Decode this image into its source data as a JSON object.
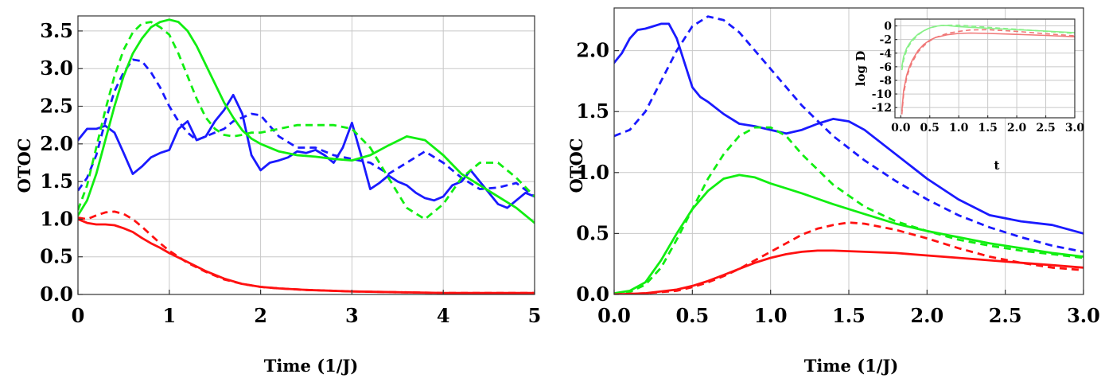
{
  "colors": {
    "blue": "#1a1aff",
    "green": "#11ee11",
    "red": "#ff1111",
    "inset_green": "#88f088",
    "inset_red": "#f07878"
  },
  "chart_data": [
    {
      "type": "line",
      "title": "",
      "xlabel": "Time (1/J)",
      "ylabel": "OTOC",
      "xlim": [
        0,
        5
      ],
      "ylim": [
        0,
        3.7
      ],
      "xticks": [
        "0",
        "1",
        "2",
        "3",
        "4",
        "5"
      ],
      "yticks": [
        "0.0",
        "0.5",
        "1.0",
        "1.5",
        "2.0",
        "2.5",
        "3.0",
        "3.5"
      ],
      "xtick_values": [
        0,
        1,
        2,
        3,
        4,
        5
      ],
      "ytick_values": [
        0,
        0.5,
        1.0,
        1.5,
        2.0,
        2.5,
        3.0,
        3.5
      ],
      "grid": true,
      "series": [
        {
          "color": "blue",
          "style": "solid",
          "x": [
            0,
            0.1,
            0.2,
            0.3,
            0.4,
            0.5,
            0.6,
            0.7,
            0.8,
            0.9,
            1.0,
            1.1,
            1.2,
            1.3,
            1.4,
            1.5,
            1.6,
            1.7,
            1.8,
            1.9,
            2.0,
            2.1,
            2.2,
            2.3,
            2.4,
            2.5,
            2.6,
            2.7,
            2.8,
            2.9,
            3.0,
            3.1,
            3.2,
            3.3,
            3.4,
            3.5,
            3.6,
            3.7,
            3.8,
            3.9,
            4.0,
            4.1,
            4.2,
            4.3,
            4.4,
            4.5,
            4.6,
            4.7,
            4.8,
            4.9,
            5.0
          ],
          "y": [
            2.05,
            2.2,
            2.2,
            2.24,
            2.15,
            1.88,
            1.6,
            1.7,
            1.82,
            1.88,
            1.92,
            2.2,
            2.3,
            2.05,
            2.1,
            2.3,
            2.45,
            2.65,
            2.4,
            1.85,
            1.65,
            1.75,
            1.78,
            1.82,
            1.9,
            1.88,
            1.92,
            1.85,
            1.75,
            1.95,
            2.28,
            1.85,
            1.4,
            1.48,
            1.58,
            1.5,
            1.45,
            1.35,
            1.28,
            1.25,
            1.3,
            1.45,
            1.5,
            1.65,
            1.5,
            1.35,
            1.2,
            1.15,
            1.25,
            1.35,
            1.3
          ]
        },
        {
          "color": "blue",
          "style": "dashed",
          "x": [
            0,
            0.1,
            0.2,
            0.3,
            0.4,
            0.5,
            0.6,
            0.7,
            0.8,
            0.9,
            1.0,
            1.1,
            1.2,
            1.3,
            1.4,
            1.5,
            1.6,
            1.7,
            1.8,
            1.9,
            2.0,
            2.2,
            2.4,
            2.6,
            2.8,
            3.0,
            3.2,
            3.4,
            3.6,
            3.8,
            4.0,
            4.2,
            4.4,
            4.6,
            4.8,
            5.0
          ],
          "y": [
            1.38,
            1.55,
            1.85,
            2.3,
            2.7,
            2.95,
            3.12,
            3.1,
            2.95,
            2.75,
            2.5,
            2.3,
            2.15,
            2.05,
            2.1,
            2.15,
            2.2,
            2.3,
            2.35,
            2.4,
            2.38,
            2.1,
            1.95,
            1.95,
            1.85,
            1.8,
            1.75,
            1.6,
            1.75,
            1.9,
            1.75,
            1.55,
            1.4,
            1.42,
            1.48,
            1.3
          ]
        },
        {
          "color": "green",
          "style": "solid",
          "x": [
            0,
            0.1,
            0.2,
            0.3,
            0.4,
            0.5,
            0.6,
            0.7,
            0.8,
            0.9,
            1.0,
            1.1,
            1.2,
            1.3,
            1.4,
            1.5,
            1.6,
            1.7,
            1.8,
            1.9,
            2.0,
            2.2,
            2.4,
            2.6,
            2.8,
            3.0,
            3.2,
            3.4,
            3.6,
            3.8,
            4.0,
            4.2,
            4.4,
            4.6,
            4.8,
            5.0
          ],
          "y": [
            1.05,
            1.25,
            1.6,
            2.05,
            2.5,
            2.9,
            3.2,
            3.4,
            3.55,
            3.62,
            3.65,
            3.62,
            3.5,
            3.3,
            3.05,
            2.8,
            2.55,
            2.35,
            2.18,
            2.07,
            2.0,
            1.9,
            1.85,
            1.83,
            1.8,
            1.78,
            1.85,
            1.98,
            2.1,
            2.05,
            1.85,
            1.6,
            1.45,
            1.3,
            1.15,
            0.95
          ]
        },
        {
          "color": "green",
          "style": "dashed",
          "x": [
            0,
            0.1,
            0.2,
            0.3,
            0.4,
            0.5,
            0.6,
            0.7,
            0.8,
            0.9,
            1.0,
            1.1,
            1.2,
            1.3,
            1.4,
            1.5,
            1.6,
            1.7,
            1.8,
            1.9,
            2.0,
            2.2,
            2.4,
            2.6,
            2.8,
            3.0,
            3.2,
            3.4,
            3.6,
            3.8,
            4.0,
            4.2,
            4.4,
            4.6,
            4.8,
            5.0
          ],
          "y": [
            1.12,
            1.45,
            1.95,
            2.45,
            2.9,
            3.25,
            3.48,
            3.6,
            3.62,
            3.55,
            3.45,
            3.2,
            2.9,
            2.6,
            2.35,
            2.2,
            2.12,
            2.1,
            2.12,
            2.15,
            2.15,
            2.2,
            2.25,
            2.25,
            2.25,
            2.2,
            1.95,
            1.55,
            1.15,
            1.0,
            1.2,
            1.55,
            1.75,
            1.75,
            1.55,
            1.3
          ]
        },
        {
          "color": "red",
          "style": "solid",
          "x": [
            0,
            0.1,
            0.2,
            0.3,
            0.4,
            0.5,
            0.6,
            0.7,
            0.8,
            0.9,
            1.0,
            1.2,
            1.4,
            1.6,
            1.8,
            2.0,
            2.2,
            2.5,
            3.0,
            3.5,
            4.0,
            4.5,
            5.0
          ],
          "y": [
            1.0,
            0.95,
            0.93,
            0.93,
            0.92,
            0.88,
            0.83,
            0.75,
            0.68,
            0.62,
            0.55,
            0.43,
            0.31,
            0.21,
            0.14,
            0.1,
            0.08,
            0.06,
            0.04,
            0.03,
            0.02,
            0.02,
            0.02
          ]
        },
        {
          "color": "red",
          "style": "dashed",
          "x": [
            0,
            0.1,
            0.2,
            0.3,
            0.4,
            0.5,
            0.6,
            0.7,
            0.8,
            0.9,
            1.0,
            1.2,
            1.4,
            1.6,
            1.8,
            2.0,
            2.2,
            2.5,
            3.0,
            3.5,
            4.0,
            4.5,
            5.0
          ],
          "y": [
            1.02,
            1.0,
            1.05,
            1.09,
            1.1,
            1.07,
            1.0,
            0.9,
            0.79,
            0.68,
            0.58,
            0.42,
            0.3,
            0.2,
            0.14,
            0.1,
            0.08,
            0.06,
            0.04,
            0.03,
            0.02,
            0.02,
            0.02
          ]
        }
      ]
    },
    {
      "type": "line",
      "title": "",
      "xlabel": "Time (1/J)",
      "ylabel": "OTOC",
      "xlim": [
        0,
        3
      ],
      "ylim": [
        0,
        2.35
      ],
      "xticks": [
        "0.0",
        "0.5",
        "1.0",
        "1.5",
        "2.0",
        "2.5",
        "3.0"
      ],
      "yticks": [
        "0.0",
        "0.5",
        "1.0",
        "1.5",
        "2.0"
      ],
      "xtick_values": [
        0,
        0.5,
        1.0,
        1.5,
        2.0,
        2.5,
        3.0
      ],
      "ytick_values": [
        0,
        0.5,
        1.0,
        1.5,
        2.0
      ],
      "grid": true,
      "series": [
        {
          "color": "blue",
          "style": "solid",
          "x": [
            0,
            0.05,
            0.1,
            0.15,
            0.2,
            0.25,
            0.3,
            0.35,
            0.4,
            0.45,
            0.5,
            0.55,
            0.6,
            0.7,
            0.8,
            0.9,
            1.0,
            1.1,
            1.2,
            1.3,
            1.4,
            1.5,
            1.6,
            1.8,
            2.0,
            2.2,
            2.4,
            2.6,
            2.8,
            3.0
          ],
          "y": [
            1.9,
            1.98,
            2.1,
            2.17,
            2.18,
            2.2,
            2.22,
            2.22,
            2.1,
            1.9,
            1.7,
            1.62,
            1.58,
            1.48,
            1.4,
            1.38,
            1.35,
            1.32,
            1.35,
            1.4,
            1.44,
            1.42,
            1.35,
            1.15,
            0.95,
            0.78,
            0.65,
            0.6,
            0.57,
            0.5
          ]
        },
        {
          "color": "blue",
          "style": "dashed",
          "x": [
            0,
            0.1,
            0.2,
            0.3,
            0.4,
            0.5,
            0.6,
            0.7,
            0.8,
            0.9,
            1.0,
            1.2,
            1.4,
            1.6,
            1.8,
            2.0,
            2.2,
            2.4,
            2.6,
            2.8,
            3.0
          ],
          "y": [
            1.3,
            1.35,
            1.5,
            1.75,
            2.0,
            2.2,
            2.28,
            2.25,
            2.15,
            2.0,
            1.85,
            1.55,
            1.3,
            1.1,
            0.93,
            0.78,
            0.65,
            0.55,
            0.47,
            0.4,
            0.35
          ]
        },
        {
          "color": "green",
          "style": "solid",
          "x": [
            0,
            0.1,
            0.2,
            0.3,
            0.4,
            0.5,
            0.6,
            0.7,
            0.8,
            0.9,
            1.0,
            1.1,
            1.2,
            1.4,
            1.6,
            1.8,
            2.0,
            2.2,
            2.4,
            2.6,
            2.8,
            3.0
          ],
          "y": [
            0.01,
            0.03,
            0.1,
            0.28,
            0.5,
            0.7,
            0.85,
            0.95,
            0.98,
            0.96,
            0.91,
            0.87,
            0.83,
            0.74,
            0.66,
            0.58,
            0.52,
            0.47,
            0.42,
            0.38,
            0.34,
            0.31
          ]
        },
        {
          "color": "green",
          "style": "dashed",
          "x": [
            0,
            0.1,
            0.2,
            0.3,
            0.4,
            0.5,
            0.6,
            0.7,
            0.8,
            0.9,
            1.0,
            1.1,
            1.2,
            1.4,
            1.6,
            1.8,
            2.0,
            2.2,
            2.4,
            2.6,
            2.8,
            3.0
          ],
          "y": [
            0.0,
            0.02,
            0.08,
            0.22,
            0.45,
            0.7,
            0.95,
            1.15,
            1.3,
            1.37,
            1.37,
            1.3,
            1.15,
            0.9,
            0.72,
            0.6,
            0.52,
            0.45,
            0.4,
            0.36,
            0.33,
            0.3
          ]
        },
        {
          "color": "red",
          "style": "solid",
          "x": [
            0,
            0.2,
            0.4,
            0.5,
            0.6,
            0.7,
            0.8,
            0.9,
            1.0,
            1.1,
            1.2,
            1.3,
            1.4,
            1.6,
            1.8,
            2.0,
            2.2,
            2.4,
            2.6,
            2.8,
            3.0
          ],
          "y": [
            0.0,
            0.01,
            0.04,
            0.07,
            0.11,
            0.16,
            0.21,
            0.26,
            0.3,
            0.33,
            0.35,
            0.36,
            0.36,
            0.35,
            0.34,
            0.32,
            0.3,
            0.28,
            0.26,
            0.24,
            0.22
          ]
        },
        {
          "color": "red",
          "style": "dashed",
          "x": [
            0,
            0.2,
            0.4,
            0.5,
            0.6,
            0.7,
            0.8,
            0.9,
            1.0,
            1.1,
            1.2,
            1.3,
            1.4,
            1.5,
            1.6,
            1.8,
            2.0,
            2.2,
            2.4,
            2.6,
            2.8,
            3.0
          ],
          "y": [
            0.0,
            0.01,
            0.03,
            0.06,
            0.1,
            0.15,
            0.21,
            0.28,
            0.35,
            0.42,
            0.49,
            0.54,
            0.57,
            0.59,
            0.58,
            0.53,
            0.46,
            0.38,
            0.31,
            0.26,
            0.22,
            0.2
          ]
        }
      ]
    },
    {
      "type": "line",
      "title": "",
      "xlabel": "t",
      "ylabel": "log D",
      "xlim": [
        -0.1,
        3.0
      ],
      "ylim": [
        -13.5,
        1.0
      ],
      "xticks": [
        "0.0",
        "0.5",
        "1.0",
        "1.5",
        "2.0",
        "2.5",
        "3.0"
      ],
      "yticks": [
        "0",
        "-2",
        "-4",
        "-6",
        "-8",
        "-10",
        "-12"
      ],
      "xtick_values": [
        0,
        0.5,
        1.0,
        1.5,
        2.0,
        2.5,
        3.0
      ],
      "ytick_values": [
        0,
        -2,
        -4,
        -6,
        -8,
        -10,
        -12
      ],
      "grid": true,
      "series": [
        {
          "color": "inset_green",
          "style": "solid",
          "x": [
            0.02,
            0.05,
            0.1,
            0.15,
            0.2,
            0.3,
            0.4,
            0.5,
            0.6,
            0.7,
            0.8,
            1.0,
            1.2,
            1.5,
            2.0,
            2.5,
            3.0
          ],
          "y": [
            -6.0,
            -4.5,
            -3.3,
            -2.6,
            -2.0,
            -1.2,
            -0.7,
            -0.3,
            -0.05,
            0.05,
            0.05,
            -0.1,
            -0.2,
            -0.35,
            -0.55,
            -0.75,
            -1.0
          ]
        },
        {
          "color": "inset_green",
          "style": "dashed",
          "x": [
            0.02,
            0.05,
            0.1,
            0.15,
            0.2,
            0.3,
            0.4,
            0.5,
            0.6,
            0.7,
            0.8,
            1.0,
            1.2,
            1.5,
            2.0,
            2.5,
            3.0
          ],
          "y": [
            -6.5,
            -5.0,
            -3.6,
            -2.8,
            -2.2,
            -1.3,
            -0.7,
            -0.3,
            -0.1,
            0.05,
            0.1,
            0.1,
            0.0,
            -0.2,
            -0.5,
            -0.8,
            -1.1
          ]
        },
        {
          "color": "inset_red",
          "style": "solid",
          "x": [
            0.02,
            0.05,
            0.1,
            0.15,
            0.2,
            0.3,
            0.4,
            0.5,
            0.6,
            0.8,
            1.0,
            1.2,
            1.5,
            2.0,
            2.5,
            3.0
          ],
          "y": [
            -12.5,
            -9.5,
            -7.3,
            -6.0,
            -5.0,
            -3.6,
            -2.7,
            -2.1,
            -1.7,
            -1.3,
            -1.1,
            -1.05,
            -1.1,
            -1.25,
            -1.4,
            -1.6
          ]
        },
        {
          "color": "inset_red",
          "style": "dashed",
          "x": [
            0.02,
            0.05,
            0.1,
            0.15,
            0.2,
            0.3,
            0.4,
            0.5,
            0.6,
            0.8,
            1.0,
            1.2,
            1.5,
            2.0,
            2.5,
            3.0
          ],
          "y": [
            -13.0,
            -10.0,
            -7.7,
            -6.3,
            -5.3,
            -3.8,
            -2.9,
            -2.2,
            -1.7,
            -1.1,
            -0.8,
            -0.6,
            -0.55,
            -0.8,
            -1.15,
            -1.45
          ]
        }
      ]
    }
  ]
}
